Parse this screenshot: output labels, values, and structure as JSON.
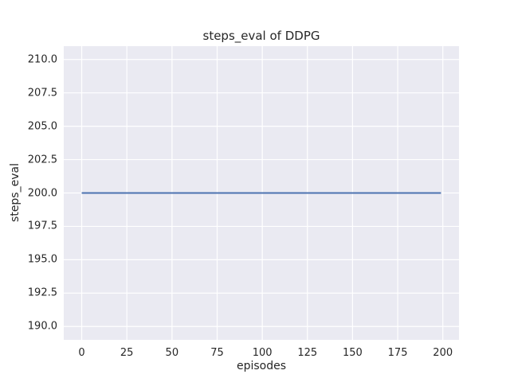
{
  "chart_data": {
    "type": "line",
    "title": "steps_eval of DDPG",
    "xlabel": "episodes",
    "ylabel": "steps_eval",
    "xlim": [
      -9.95,
      208.95
    ],
    "ylim": [
      189,
      211
    ],
    "xticks": {
      "values": [
        0,
        25,
        50,
        75,
        100,
        125,
        150,
        175,
        200
      ],
      "labels": [
        "0",
        "25",
        "50",
        "75",
        "100",
        "125",
        "150",
        "175",
        "200"
      ]
    },
    "yticks": {
      "values": [
        190.0,
        192.5,
        195.0,
        197.5,
        200.0,
        202.5,
        205.0,
        207.5,
        210.0
      ],
      "labels": [
        "190.0",
        "192.5",
        "195.0",
        "197.5",
        "200.0",
        "202.5",
        "205.0",
        "207.5",
        "210.0"
      ]
    },
    "grid": true,
    "legend": false,
    "style": "seaborn-darkgrid",
    "colors": {
      "plot_background": "#EAEAF2",
      "grid_line": "#FFFFFF",
      "series_line": "#4C72B0",
      "text": "#262626",
      "figure_background": "#FFFFFF"
    },
    "series": [
      {
        "name": "DDPG",
        "description": "steps_eval constant at 200 for episodes 0 through 199",
        "x": [
          0,
          199
        ],
        "y": [
          200,
          200
        ]
      }
    ]
  }
}
